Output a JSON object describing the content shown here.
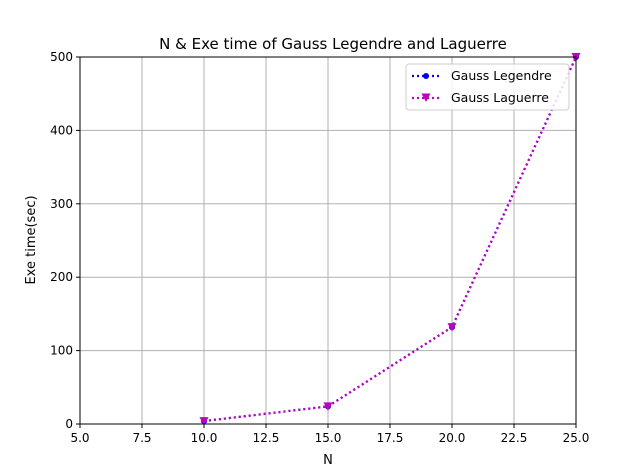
{
  "chart_data": {
    "type": "line",
    "title": "N & Exe time of Gauss Legendre and Laguerre",
    "xlabel": "N",
    "ylabel": "Exe time(sec)",
    "xlim": [
      5.0,
      25.0
    ],
    "ylim": [
      0,
      500
    ],
    "x_ticks": [
      "5.0",
      "7.5",
      "10.0",
      "12.5",
      "15.0",
      "17.5",
      "20.0",
      "22.5",
      "25.0"
    ],
    "y_ticks": [
      "0",
      "100",
      "200",
      "300",
      "400",
      "500"
    ],
    "x_tick_values": [
      5.0,
      7.5,
      10.0,
      12.5,
      15.0,
      17.5,
      20.0,
      22.5,
      25.0
    ],
    "y_tick_values": [
      0,
      100,
      200,
      300,
      400,
      500
    ],
    "grid": true,
    "legend_position": "top-right",
    "series": [
      {
        "name": "Gauss Legendre",
        "color": "#0000ff",
        "marker": "circle",
        "linestyle": "dotted",
        "x": [
          10,
          15,
          20,
          25
        ],
        "y": [
          4,
          24,
          132,
          500
        ]
      },
      {
        "name": "Gauss Laguerre",
        "color": "#bf00bf",
        "marker": "triangle-down",
        "linestyle": "dotted",
        "x": [
          10,
          15,
          20,
          25
        ],
        "y": [
          4,
          24,
          132,
          500
        ]
      }
    ]
  }
}
